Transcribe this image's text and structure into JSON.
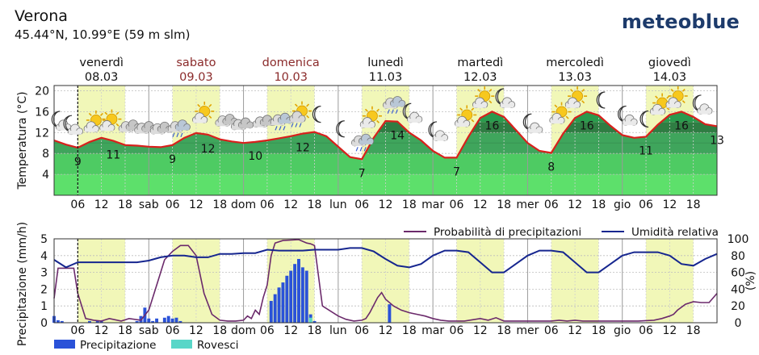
{
  "location": {
    "name": "Verona",
    "coords": "45.44°N, 10.99°E (59 m slm)"
  },
  "brand": "meteoblue",
  "colors": {
    "weekday": "#111111",
    "weekend": "#8b2b2b",
    "temp_line": "#d8201c",
    "precip_prob_line": "#6b2a6b",
    "humidity_line": "#16268f",
    "precip_bar": "#2a52d8",
    "showers_bar": "#59d6c8",
    "daylight": "#f1f7b8"
  },
  "days": [
    {
      "name": "venerdì",
      "date": "08.03",
      "weekend": false
    },
    {
      "name": "sabato",
      "date": "09.03",
      "weekend": true
    },
    {
      "name": "domenica",
      "date": "10.03",
      "weekend": true
    },
    {
      "name": "lunedì",
      "date": "11.03",
      "weekend": false
    },
    {
      "name": "martedì",
      "date": "12.03",
      "weekend": false
    },
    {
      "name": "mercoledì",
      "date": "13.03",
      "weekend": false
    },
    {
      "name": "giovedì",
      "date": "14.03",
      "weekend": false
    }
  ],
  "x_tick_labels": [
    "06",
    "12",
    "18",
    "sab",
    "06",
    "12",
    "18",
    "dom",
    "06",
    "12",
    "18",
    "lun",
    "06",
    "12",
    "18",
    "mar",
    "06",
    "12",
    "18",
    "mer",
    "06",
    "12",
    "18",
    "gio",
    "06",
    "12",
    "18"
  ],
  "chart_data": [
    {
      "type": "area",
      "title": "",
      "xlabel": "",
      "ylabel": "Temperatura (°C)",
      "ylim": [
        0,
        21
      ],
      "yticks": [
        4,
        8,
        12,
        16,
        20
      ],
      "x_unit": "hours since venerdì 08.03 00:00",
      "xlim": [
        0,
        168
      ],
      "current_time": 6,
      "grid": true,
      "series": [
        {
          "x": [
            0,
            3,
            6,
            9,
            12,
            15,
            18,
            21,
            24,
            27,
            30,
            33,
            36,
            39,
            42,
            45,
            48,
            51,
            54,
            57,
            60,
            63,
            66,
            69,
            72,
            75,
            78,
            81,
            84,
            87,
            90,
            93,
            96,
            99,
            102,
            105,
            108,
            111,
            114,
            117,
            120,
            123,
            126,
            129,
            132,
            135,
            138,
            141,
            144,
            147,
            150,
            153,
            156,
            159,
            162,
            165,
            168
          ],
          "values": [
            10.5,
            9.7,
            9.1,
            10.2,
            11.0,
            10.4,
            9.6,
            9.5,
            9.3,
            9.2,
            9.6,
            11.0,
            11.9,
            11.6,
            10.7,
            10.3,
            10.0,
            10.2,
            10.5,
            10.9,
            11.3,
            11.8,
            12.1,
            11.3,
            9.3,
            7.3,
            6.9,
            11.0,
            14.2,
            14.1,
            12.0,
            10.5,
            8.5,
            7.2,
            7.2,
            11.2,
            14.8,
            16.0,
            15.0,
            12.5,
            10.0,
            8.5,
            8.1,
            11.8,
            14.8,
            16.0,
            15.3,
            13.3,
            11.5,
            11.0,
            11.2,
            13.5,
            15.4,
            16.0,
            15.0,
            13.6,
            13.2
          ]
        }
      ],
      "labels": [
        {
          "text": "9",
          "x": 6
        },
        {
          "text": "11",
          "x": 15
        },
        {
          "text": "9",
          "x": 30
        },
        {
          "text": "12",
          "x": 39
        },
        {
          "text": "10",
          "x": 51
        },
        {
          "text": "12",
          "x": 63
        },
        {
          "text": "7",
          "x": 78
        },
        {
          "text": "14",
          "x": 87
        },
        {
          "text": "7",
          "x": 102
        },
        {
          "text": "16",
          "x": 111
        },
        {
          "text": "8",
          "x": 126
        },
        {
          "text": "16",
          "x": 135
        },
        {
          "text": "11",
          "x": 150
        },
        {
          "text": "16",
          "x": 159
        },
        {
          "text": "13",
          "x": 168
        }
      ],
      "weather_icons": [
        {
          "name": "cloudy-night-icon",
          "x": 1.5
        },
        {
          "name": "cloudy-night-icon",
          "x": 4.5
        },
        {
          "name": "partly-sunny-icon",
          "x": 10
        },
        {
          "name": "partly-sunny-icon",
          "x": 14
        },
        {
          "name": "cloudy-icon",
          "x": 19
        },
        {
          "name": "cloudy-icon",
          "x": 23
        },
        {
          "name": "cloudy-icon",
          "x": 27
        },
        {
          "name": "cloudy-rain-icon",
          "x": 31.5
        },
        {
          "name": "partly-sunny-icon",
          "x": 37.5
        },
        {
          "name": "cloudy-icon",
          "x": 43.5
        },
        {
          "name": "cloudy-icon",
          "x": 47.5
        },
        {
          "name": "cloudy-icon",
          "x": 53
        },
        {
          "name": "cloudy-rain-icon",
          "x": 57.5
        },
        {
          "name": "partly-sunny-rain-icon",
          "x": 62
        },
        {
          "name": "moon-icon",
          "x": 67
        },
        {
          "name": "moon-icon",
          "x": 73
        },
        {
          "name": "cloudy-rain-icon",
          "x": 78
        },
        {
          "name": "partly-sunny-icon",
          "x": 80
        },
        {
          "name": "cloudy-rain-icon",
          "x": 86
        },
        {
          "name": "cloudy-night-icon",
          "x": 90.5
        },
        {
          "name": "cloudy-night-icon",
          "x": 97
        },
        {
          "name": "partly-sunny-icon",
          "x": 104
        },
        {
          "name": "partly-sunny-icon",
          "x": 108.5
        },
        {
          "name": "partly-cloudy-night-icon",
          "x": 114
        },
        {
          "name": "cloudy-night-icon",
          "x": 121
        },
        {
          "name": "partly-sunny-icon",
          "x": 128
        },
        {
          "name": "partly-sunny-icon",
          "x": 132
        },
        {
          "name": "moon-icon",
          "x": 139
        },
        {
          "name": "cloudy-night-icon",
          "x": 145
        },
        {
          "name": "moon-icon",
          "x": 150
        },
        {
          "name": "partly-sunny-icon",
          "x": 153.5
        },
        {
          "name": "partly-sunny-icon",
          "x": 157.5
        },
        {
          "name": "cloudy-night-icon",
          "x": 164
        }
      ]
    },
    {
      "type": "bar",
      "title": "",
      "xlabel": "",
      "ylabel": "Precipitazione (mm/h)",
      "ylim": [
        0,
        5
      ],
      "yticks": [
        0,
        1,
        2,
        3,
        4,
        5
      ],
      "y2label": "(%)",
      "y2lim": [
        0,
        100
      ],
      "y2ticks": [
        0,
        20,
        40,
        60,
        80,
        100
      ],
      "x_unit": "hours since venerdì 08.03 00:00",
      "xlim": [
        0,
        168
      ],
      "current_time": 6,
      "grid": true,
      "legend": {
        "position": "top-right",
        "entries": [
          "Probabilità di precipitazioni",
          "Umidità relativa"
        ]
      },
      "bottom_legend": [
        "Precipitazione",
        "Rovesci"
      ],
      "precipitation": {
        "x": [
          0,
          1,
          2,
          9,
          11,
          12,
          21,
          22,
          23,
          24,
          25,
          26,
          28,
          29,
          30,
          31,
          32,
          55,
          56,
          57,
          58,
          59,
          60,
          61,
          62,
          63,
          64,
          65,
          66,
          85
        ],
        "values": [
          0.4,
          0.15,
          0.1,
          0.1,
          0.1,
          0.1,
          0.1,
          0.4,
          0.9,
          0.25,
          0.1,
          0.25,
          0.3,
          0.4,
          0.25,
          0.3,
          0.1,
          1.3,
          1.7,
          2.1,
          2.4,
          2.8,
          3.1,
          3.5,
          3.8,
          3.3,
          3.1,
          0.5,
          0.1,
          1.1
        ]
      },
      "showers": {
        "x": [
          65
        ],
        "values": [
          0.3
        ]
      },
      "series": [
        {
          "name": "Probabilità di precipitazioni",
          "x": [
            0,
            1,
            2,
            5,
            6,
            8,
            9,
            10,
            12,
            14,
            17,
            19,
            22,
            24,
            26,
            28,
            30,
            32,
            34,
            36,
            38,
            40,
            42,
            44,
            46,
            48,
            49,
            50,
            51,
            52,
            53,
            54,
            55,
            56,
            58,
            62,
            63,
            64,
            65,
            66,
            68,
            72,
            74,
            76,
            78,
            79,
            80,
            82,
            83,
            84,
            86,
            88,
            90,
            92,
            94,
            96,
            98,
            100,
            102,
            104,
            108,
            110,
            112,
            114,
            116,
            118,
            120,
            122,
            124,
            126,
            128,
            130,
            132,
            134,
            136,
            140,
            144,
            146,
            148,
            152,
            154,
            156,
            157,
            158,
            160,
            162,
            164,
            166,
            168
          ],
          "values": [
            29,
            65,
            65,
            65,
            35,
            5,
            4,
            3,
            2,
            5,
            2,
            5,
            3,
            15,
            45,
            75,
            85,
            92,
            92,
            80,
            35,
            10,
            3,
            2,
            2,
            3,
            8,
            5,
            15,
            10,
            30,
            45,
            80,
            95,
            98,
            99,
            97,
            95,
            94,
            92,
            20,
            8,
            4,
            2,
            3,
            5,
            12,
            30,
            36,
            28,
            20,
            15,
            12,
            10,
            8,
            5,
            3,
            2,
            2,
            2,
            5,
            3,
            6,
            2,
            2,
            2,
            2,
            2,
            2,
            2,
            3,
            2,
            3,
            2,
            2,
            2,
            2,
            2,
            2,
            3,
            5,
            8,
            10,
            15,
            22,
            25,
            24,
            24,
            35
          ]
        },
        {
          "name": "Umidità relativa",
          "x": [
            0,
            3,
            6,
            9,
            12,
            15,
            18,
            21,
            24,
            27,
            30,
            33,
            36,
            39,
            42,
            45,
            48,
            51,
            54,
            57,
            60,
            63,
            66,
            69,
            72,
            75,
            78,
            81,
            84,
            87,
            90,
            93,
            96,
            99,
            102,
            105,
            108,
            111,
            114,
            117,
            120,
            123,
            126,
            129,
            132,
            135,
            138,
            141,
            144,
            147,
            150,
            153,
            156,
            159,
            162,
            165,
            168
          ],
          "values": [
            75,
            66,
            72,
            72,
            72,
            72,
            72,
            72,
            74,
            78,
            80,
            80,
            78,
            78,
            82,
            82,
            83,
            83,
            87,
            86,
            86,
            86,
            87,
            87,
            87,
            89,
            89,
            85,
            76,
            68,
            66,
            70,
            80,
            86,
            86,
            84,
            72,
            60,
            60,
            70,
            80,
            86,
            86,
            84,
            72,
            60,
            60,
            70,
            80,
            84,
            84,
            84,
            80,
            70,
            68,
            76,
            82
          ]
        }
      ]
    }
  ]
}
